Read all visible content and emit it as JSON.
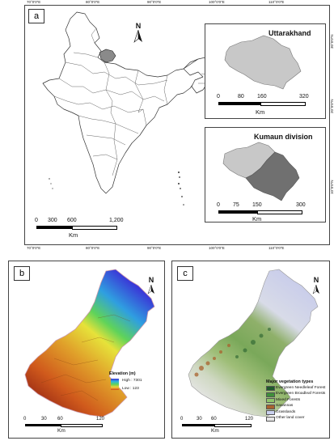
{
  "panel_a": {
    "label": "a",
    "top_ticks": [
      "70°0'0\"E",
      "80°0'0\"E",
      "90°0'0\"E",
      "100°0'0\"E",
      "110°0'0\"E"
    ],
    "bottom_ticks": [
      "70°0'0\"E",
      "80°0'0\"E",
      "90°0'0\"E",
      "100°0'0\"E",
      "110°0'0\"E"
    ],
    "right_ticks": [
      "30°0'0\"N",
      "20°0'0\"N",
      "10°0'0\"N"
    ],
    "north": "N",
    "scale": {
      "labels": [
        "0",
        "300",
        "600",
        "1,200"
      ],
      "unit": "Km"
    },
    "inset_uttarakhand": {
      "title": "Uttarakhand",
      "scale": [
        "0",
        "80",
        "160",
        "320"
      ],
      "unit": "Km"
    },
    "inset_kumaun": {
      "title": "Kumaun division",
      "scale": [
        "0",
        "75",
        "150",
        "300"
      ],
      "unit": "Km"
    }
  },
  "panel_b": {
    "label": "b",
    "north": "N",
    "legend": {
      "title": "Elevation (m)",
      "high": "High : 7301",
      "low": "Low : 123",
      "colors": [
        "#3b2fd6",
        "#2fb6e0",
        "#5fd35a",
        "#f0d23a",
        "#d24a1a"
      ]
    },
    "scale": {
      "labels": [
        "0",
        "30",
        "60",
        "120"
      ],
      "unit": "Km"
    }
  },
  "panel_c": {
    "label": "c",
    "north": "N",
    "legend": {
      "title": "Major vegetation types",
      "items": [
        {
          "label": "Evergreen Needleleaf Forest",
          "color": "#1f5a2a"
        },
        {
          "label": "Evergreen Broadleaf Forests",
          "color": "#3f8f3a"
        },
        {
          "label": "Mixed Forests",
          "color": "#8fc46a"
        },
        {
          "label": "Savannas",
          "color": "#a9622e"
        },
        {
          "label": "Grasslands",
          "color": "#c9d0ee"
        },
        {
          "label": "Other land cover",
          "color": "#e6e6e6"
        }
      ]
    },
    "scale": {
      "labels": [
        "0",
        "30",
        "60",
        "120"
      ],
      "unit": "Km"
    }
  },
  "colors": {
    "uttarakhand": "#c8c8c8",
    "kumaun": "#707070",
    "frame": "#444444"
  }
}
